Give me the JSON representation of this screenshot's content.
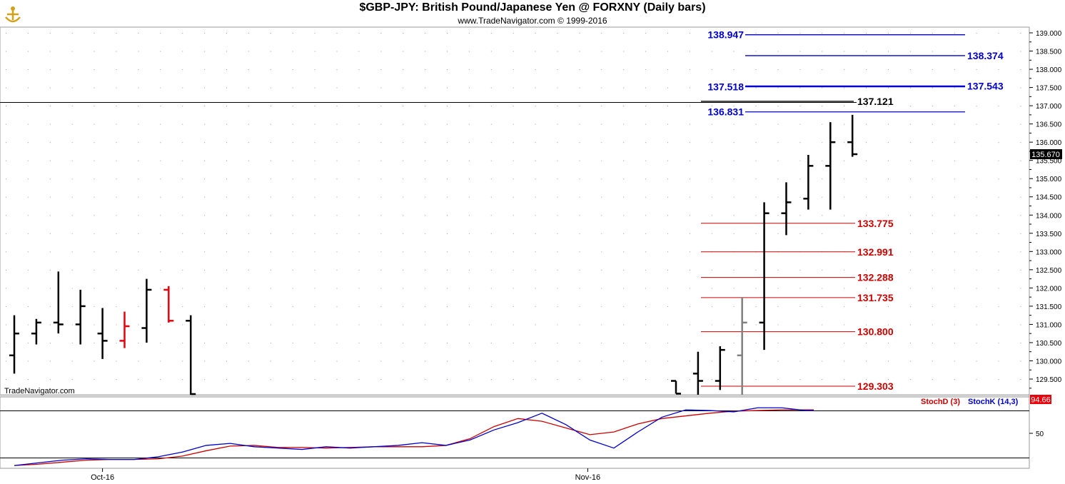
{
  "header": {
    "title": "$GBP-JPY:  British Pound/Japanese Yen @ FORXNY  (Daily bars)",
    "copyright": "www.TradeNavigator.com © 1999-2016"
  },
  "watermark": "TradeNavigator.com",
  "colors": {
    "up_bar": "#000000",
    "down_bar": "#e8000b",
    "projection_blue": "#0000cc",
    "support_red": "#cc0000",
    "stoch_d": "#cc0000",
    "stoch_k": "#0000cc",
    "last_price_bg": "#000000",
    "stoch_last_bg": "#e8000b"
  },
  "chart_data": [
    {
      "type": "ohlc",
      "panel": "price",
      "ylim": [
        129.05,
        139.25
      ],
      "yticks": [
        "129.500",
        "130.000",
        "130.500",
        "131.000",
        "131.500",
        "132.000",
        "132.500",
        "133.000",
        "133.500",
        "134.000",
        "134.500",
        "135.000",
        "135.500",
        "136.000",
        "136.500",
        "137.000",
        "137.500",
        "138.000",
        "138.500",
        "139.000"
      ],
      "x_labels": [
        {
          "label": "Oct-16",
          "index": 4
        },
        {
          "label": "Nov-16",
          "index": 26
        }
      ],
      "last_price": "135.670",
      "bars": [
        {
          "o": 130.15,
          "h": 131.25,
          "l": 129.65,
          "c": 130.75,
          "color": "black"
        },
        {
          "o": 130.75,
          "h": 131.15,
          "l": 130.45,
          "c": 131.05,
          "color": "black"
        },
        {
          "o": 131.05,
          "h": 132.45,
          "l": 130.75,
          "c": 131.0,
          "color": "black"
        },
        {
          "o": 131.0,
          "h": 131.95,
          "l": 130.45,
          "c": 131.5,
          "color": "black"
        },
        {
          "o": 130.75,
          "h": 131.45,
          "l": 130.05,
          "c": 130.55,
          "color": "black"
        },
        {
          "o": 130.55,
          "h": 131.35,
          "l": 130.35,
          "c": 130.95,
          "color": "red"
        },
        {
          "o": 130.9,
          "h": 132.25,
          "l": 130.5,
          "c": 131.95,
          "color": "black"
        },
        {
          "o": 131.95,
          "h": 132.05,
          "l": 131.05,
          "c": 131.1,
          "color": "red"
        },
        {
          "o": 131.1,
          "h": 131.25,
          "l": 129.05,
          "c": 129.05,
          "color": "black"
        },
        {
          "gap": true
        },
        {
          "gap": true
        },
        {
          "gap": true
        },
        {
          "gap": true
        },
        {
          "gap": true
        },
        {
          "gap": true
        },
        {
          "gap": true
        },
        {
          "gap": true
        },
        {
          "gap": true
        },
        {
          "gap": true
        },
        {
          "gap": true
        },
        {
          "gap": true
        },
        {
          "gap": true
        },
        {
          "gap": true
        },
        {
          "gap": true
        },
        {
          "gap": true
        },
        {
          "gap": true
        },
        {
          "gap": true
        },
        {
          "gap": true
        },
        {
          "gap": true
        },
        {
          "gap": true
        },
        {
          "o": 129.45,
          "h": 129.45,
          "l": 129.1,
          "c": 129.1,
          "color": "black"
        },
        {
          "o": 129.65,
          "h": 130.25,
          "l": 129.05,
          "c": 129.45,
          "color": "black"
        },
        {
          "o": 129.45,
          "h": 130.4,
          "l": 129.2,
          "c": 130.3,
          "color": "black"
        },
        {
          "o": 130.15,
          "h": 131.75,
          "l": 129.05,
          "c": 131.05,
          "color": "gray"
        },
        {
          "o": 131.05,
          "h": 134.35,
          "l": 130.3,
          "c": 134.05,
          "color": "black"
        },
        {
          "o": 134.05,
          "h": 134.9,
          "l": 133.45,
          "c": 134.35,
          "color": "black"
        },
        {
          "o": 134.45,
          "h": 135.65,
          "l": 134.15,
          "c": 135.35,
          "color": "black"
        },
        {
          "o": 135.35,
          "h": 136.55,
          "l": 134.15,
          "c": 136.0,
          "color": "black"
        },
        {
          "o": 136.0,
          "h": 136.75,
          "l": 135.6,
          "c": 135.67,
          "color": "black"
        }
      ],
      "levels": [
        {
          "value": 138.947,
          "label": "138.947",
          "color": "blue",
          "side": "left"
        },
        {
          "value": 138.374,
          "label": "138.374",
          "color": "blue",
          "side": "right"
        },
        {
          "value": 137.518,
          "label": "137.518",
          "color": "blue",
          "side": "left"
        },
        {
          "value": 137.543,
          "label": "137.543",
          "color": "blue",
          "side": "right"
        },
        {
          "value": 137.121,
          "label": "137.121",
          "color": "black",
          "side": "right"
        },
        {
          "value": 136.831,
          "label": "136.831",
          "color": "blue",
          "side": "left"
        },
        {
          "value": 133.775,
          "label": "133.775",
          "color": "red",
          "side": "right"
        },
        {
          "value": 132.991,
          "label": "132.991",
          "color": "red",
          "side": "right"
        },
        {
          "value": 132.288,
          "label": "132.288",
          "color": "red",
          "side": "right"
        },
        {
          "value": 131.735,
          "label": "131.735",
          "color": "red",
          "side": "right"
        },
        {
          "value": 130.8,
          "label": "130.800",
          "color": "red",
          "side": "right"
        },
        {
          "value": 129.303,
          "label": "129.303",
          "color": "red",
          "side": "right"
        }
      ]
    },
    {
      "type": "line",
      "panel": "stochastic",
      "ylim": [
        0,
        100
      ],
      "yticks": [
        "50"
      ],
      "last_value": "94.66",
      "series": [
        {
          "name": "StochD (3)",
          "color": "red",
          "x": [
            0,
            3,
            6,
            9,
            12,
            15,
            18,
            21,
            24,
            27,
            30,
            33,
            36,
            39,
            42,
            45,
            48,
            51,
            54,
            57,
            60,
            63,
            66,
            69,
            72,
            75,
            78,
            81,
            84,
            87,
            90,
            93,
            96,
            99,
            100
          ],
          "values": [
            2,
            4,
            7,
            10,
            11,
            11,
            12,
            16,
            24,
            31,
            32,
            29,
            29,
            28,
            29,
            30,
            30,
            30,
            32,
            42,
            60,
            72,
            68,
            58,
            48,
            52,
            64,
            72,
            76,
            80,
            83,
            84,
            85,
            85,
            85
          ]
        },
        {
          "name": "StochK (14,3)",
          "color": "blue",
          "x": [
            0,
            3,
            6,
            9,
            12,
            15,
            18,
            21,
            24,
            27,
            30,
            33,
            36,
            39,
            42,
            45,
            48,
            51,
            54,
            57,
            60,
            63,
            66,
            69,
            72,
            75,
            78,
            81,
            84,
            87,
            90,
            93,
            96,
            99,
            100
          ],
          "values": [
            2,
            6,
            10,
            12,
            11,
            11,
            15,
            22,
            32,
            35,
            30,
            28,
            26,
            30,
            28,
            30,
            32,
            36,
            32,
            40,
            55,
            66,
            80,
            63,
            40,
            28,
            52,
            74,
            85,
            84,
            82,
            88,
            88,
            84,
            84
          ]
        }
      ]
    }
  ]
}
